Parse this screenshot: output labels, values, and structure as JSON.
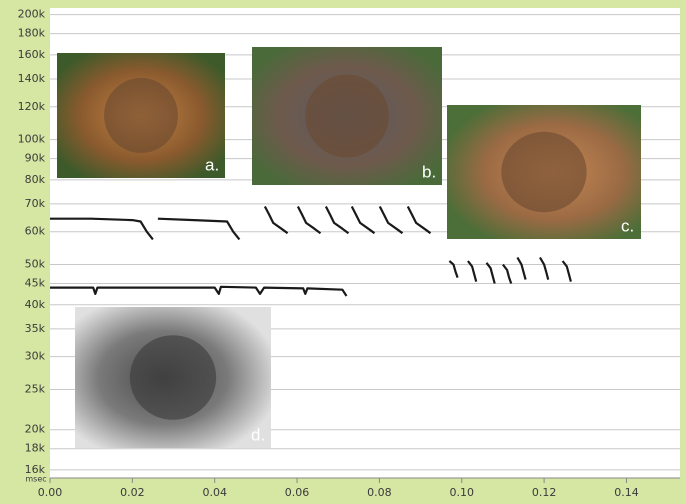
{
  "chart_data": {
    "type": "line",
    "x_label": "msec",
    "log_y": true,
    "grid": true,
    "xlim": [
      0,
      0.153
    ],
    "xticks": [
      {
        "value": 0,
        "label": "0.00"
      },
      {
        "value": 0.02,
        "label": "0.02"
      },
      {
        "value": 0.04,
        "label": "0.04"
      },
      {
        "value": 0.06,
        "label": "0.06"
      },
      {
        "value": 0.08,
        "label": "0.08"
      },
      {
        "value": 0.1,
        "label": "0.10"
      },
      {
        "value": 0.12,
        "label": "0.12"
      },
      {
        "value": 0.14,
        "label": "0.14"
      }
    ],
    "ylim": [
      15300,
      203000
    ],
    "yticks": [
      {
        "value": 16000,
        "label": "16k"
      },
      {
        "value": 18000,
        "label": "18k"
      },
      {
        "value": 20000,
        "label": "20k"
      },
      {
        "value": 25000,
        "label": "25k"
      },
      {
        "value": 30000,
        "label": "30k"
      },
      {
        "value": 35000,
        "label": "35k"
      },
      {
        "value": 40000,
        "label": "40k"
      },
      {
        "value": 45000,
        "label": "45k"
      },
      {
        "value": 50000,
        "label": "50k"
      },
      {
        "value": 60000,
        "label": "60k"
      },
      {
        "value": 70000,
        "label": "70k"
      },
      {
        "value": 80000,
        "label": "80k"
      },
      {
        "value": 90000,
        "label": "90k"
      },
      {
        "value": 100000,
        "label": "100k"
      },
      {
        "value": 120000,
        "label": "120k"
      },
      {
        "value": 140000,
        "label": "140k"
      },
      {
        "value": 160000,
        "label": "160k"
      },
      {
        "value": 180000,
        "label": "180k"
      },
      {
        "value": 200000,
        "label": "200k"
      }
    ],
    "annotations": [
      "a.",
      "b.",
      "c.",
      "d."
    ],
    "series": [
      {
        "color": "#1a1a1a",
        "x": [
          0,
          0.01,
          0.02,
          0.022,
          0.0235,
          0.025,
          null,
          0.0262,
          0.035,
          0.043,
          0.0445,
          0.046
        ],
        "values": [
          64500,
          64500,
          64000,
          63500,
          60000,
          57500,
          null,
          64500,
          64000,
          63500,
          60000,
          57500
        ]
      },
      {
        "color": "#1a1a1a",
        "x": [
          0,
          0.0105,
          0.011,
          0.0115,
          0.04,
          0.041,
          0.0415,
          0.05,
          0.051,
          0.052,
          0.0615,
          0.062,
          0.0625,
          0.071,
          0.072
        ],
        "values": [
          44000,
          44000,
          42500,
          44000,
          44000,
          42500,
          44200,
          44000,
          42500,
          44000,
          43800,
          42500,
          43800,
          43500,
          42000
        ]
      },
      {
        "color": "#1a1a1a",
        "x": [
          0.0522,
          0.0532,
          0.0542,
          0.0562,
          0.0577,
          null,
          0.0602,
          0.0612,
          0.0622,
          0.0642,
          0.0657,
          null,
          0.067,
          0.068,
          0.069,
          0.071,
          0.0725,
          null,
          0.0733,
          0.0743,
          0.0753,
          0.0773,
          0.0788,
          null,
          0.0801,
          0.0811,
          0.0821,
          0.0841,
          0.0856,
          null,
          0.0869,
          0.0879,
          0.0889,
          0.0909,
          0.0924
        ],
        "values": [
          69000,
          66000,
          63000,
          61000,
          59500,
          null,
          69000,
          66000,
          63000,
          61000,
          59500,
          null,
          69000,
          66000,
          63000,
          61000,
          59500,
          null,
          69000,
          66000,
          63000,
          61000,
          59500,
          null,
          69000,
          66000,
          63000,
          61000,
          59500,
          null,
          69000,
          66000,
          63000,
          61000,
          59500
        ]
      },
      {
        "color": "#1a1a1a",
        "x": [
          0.097,
          0.098,
          0.0985,
          0.099,
          null,
          0.1015,
          0.1025,
          0.103,
          0.1035,
          null,
          0.106,
          0.107,
          0.1075,
          0.108,
          null,
          0.11,
          0.111,
          0.1115,
          0.112,
          null,
          0.1135,
          0.1145,
          0.115,
          0.1155,
          null,
          0.119,
          0.12,
          0.1205,
          0.121,
          null,
          0.1245,
          0.1255,
          0.126,
          0.1265
        ],
        "values": [
          51000,
          50000,
          48000,
          46500,
          null,
          51000,
          49500,
          47500,
          45500,
          null,
          50500,
          49000,
          47000,
          45000,
          null,
          50000,
          48500,
          46500,
          45000,
          null,
          52000,
          50000,
          48000,
          46000,
          null,
          52000,
          50000,
          48000,
          46000,
          null,
          51000,
          49500,
          47500,
          45500
        ]
      }
    ]
  }
}
